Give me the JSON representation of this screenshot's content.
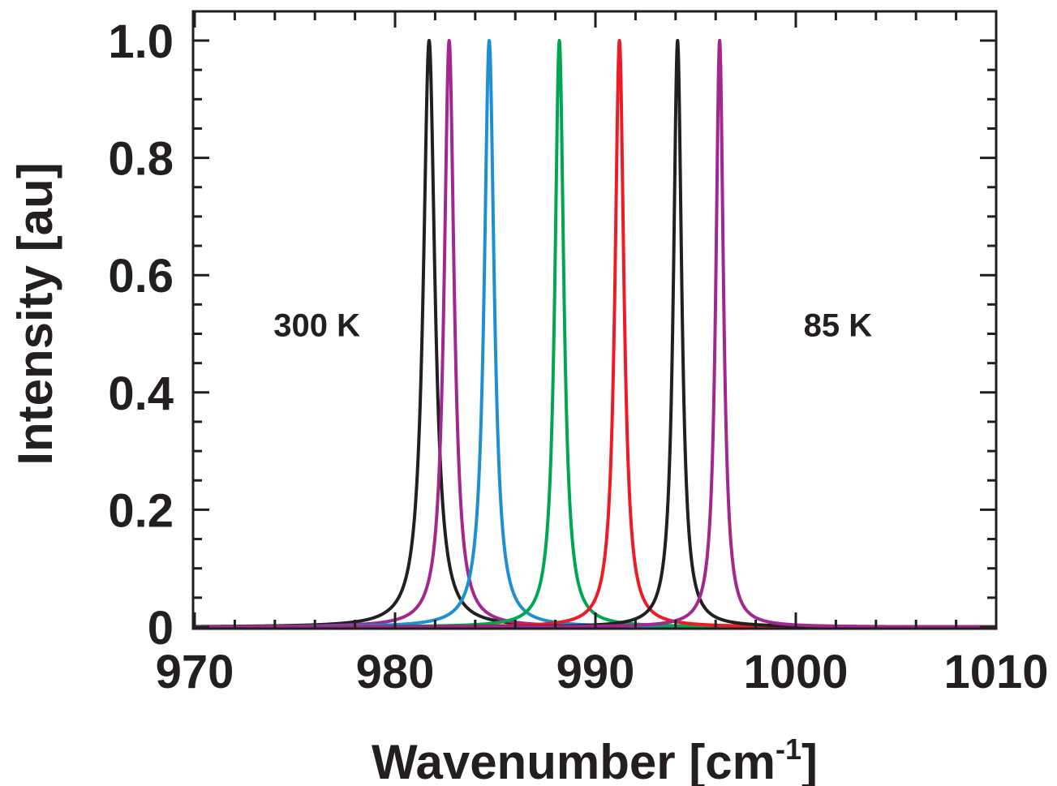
{
  "chart_data": {
    "type": "line",
    "title": "",
    "xlabel": "Wavenumber [cm",
    "xlabel_sup": "-1",
    "xlabel_close": "]",
    "ylabel": "Intensity [au]",
    "xlim": [
      970,
      1010
    ],
    "ylim": [
      0,
      1.0
    ],
    "x_ticks": [
      970,
      980,
      990,
      1000,
      1010
    ],
    "x_tick_labels": [
      "970",
      "980",
      "990",
      "1000",
      "1010"
    ],
    "y_ticks": [
      0,
      0.2,
      0.4,
      0.6,
      0.8,
      1.0
    ],
    "y_tick_labels": [
      "0",
      "0.2",
      "0.4",
      "0.6",
      "0.8",
      "1.0"
    ],
    "grid": false,
    "annotations": [
      {
        "text": "300 K",
        "x": 976.1,
        "y": 0.515
      },
      {
        "text": "85 K",
        "x": 1002.1,
        "y": 0.515
      }
    ],
    "series": [
      {
        "color": "#231f20",
        "peak": 981.7,
        "hwhm": 0.35,
        "amplitude": 1.0
      },
      {
        "color": "#a2288f",
        "peak": 982.7,
        "hwhm": 0.3,
        "amplitude": 1.0
      },
      {
        "color": "#1e8fd0",
        "peak": 984.7,
        "hwhm": 0.3,
        "amplitude": 1.0
      },
      {
        "color": "#00a651",
        "peak": 988.2,
        "hwhm": 0.27,
        "amplitude": 1.0
      },
      {
        "color": "#ed1c24",
        "peak": 991.2,
        "hwhm": 0.27,
        "amplitude": 1.0
      },
      {
        "color": "#231f20",
        "peak": 994.1,
        "hwhm": 0.25,
        "amplitude": 1.0
      },
      {
        "color": "#a2288f",
        "peak": 996.2,
        "hwhm": 0.23,
        "amplitude": 1.0
      }
    ]
  }
}
